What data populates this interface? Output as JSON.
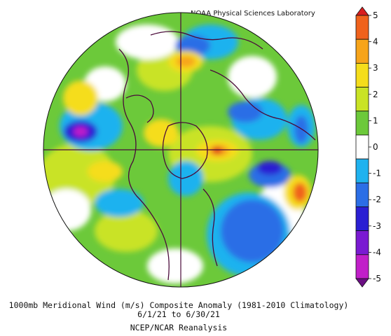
{
  "credit": "NOAA Physical Sciences Laboratory",
  "caption": {
    "line1": "1000mb Meridional Wind (m/s) Composite Anomaly (1981-2010 Climatology)",
    "line2": "6/1/21  to 6/30/21",
    "line3": "NCEP/NCAR Reanalysis"
  },
  "colorbar": {
    "ticks": [
      "5",
      "4",
      "3",
      "2",
      "1",
      "0",
      "-1",
      "-2",
      "-3",
      "-4",
      "-5"
    ],
    "colors": [
      "#d81e1e",
      "#f0621c",
      "#f7a41a",
      "#f5dd1b",
      "#c9e325",
      "#6cc93a",
      "#ffffff",
      "#1fb2ef",
      "#2b6ee6",
      "#2a1fd3",
      "#7a1ad2",
      "#c11fc9",
      "#6b0e83"
    ]
  },
  "map": {
    "projection": "north-polar-stereographic"
  }
}
